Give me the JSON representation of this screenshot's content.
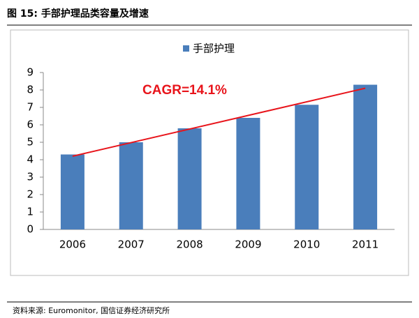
{
  "chart_data": {
    "type": "bar",
    "title": "图 15: 手部护理品类容量及增速",
    "source": "资料来源: Euromonitor, 国信证券经济研究所",
    "annotation": "CAGR=14.1%",
    "categories": [
      "2006",
      "2007",
      "2008",
      "2009",
      "2010",
      "2011"
    ],
    "series": [
      {
        "name": "手部护理",
        "color": "#4a7ebb",
        "values": [
          4.3,
          5.0,
          5.8,
          6.4,
          7.15,
          8.3
        ]
      }
    ],
    "trend_line": {
      "color": "#e8141b",
      "values": [
        4.2,
        8.1
      ]
    },
    "ylim": [
      0,
      9
    ],
    "yticks": [
      0,
      1,
      2,
      3,
      4,
      5,
      6,
      7,
      8,
      9
    ]
  }
}
